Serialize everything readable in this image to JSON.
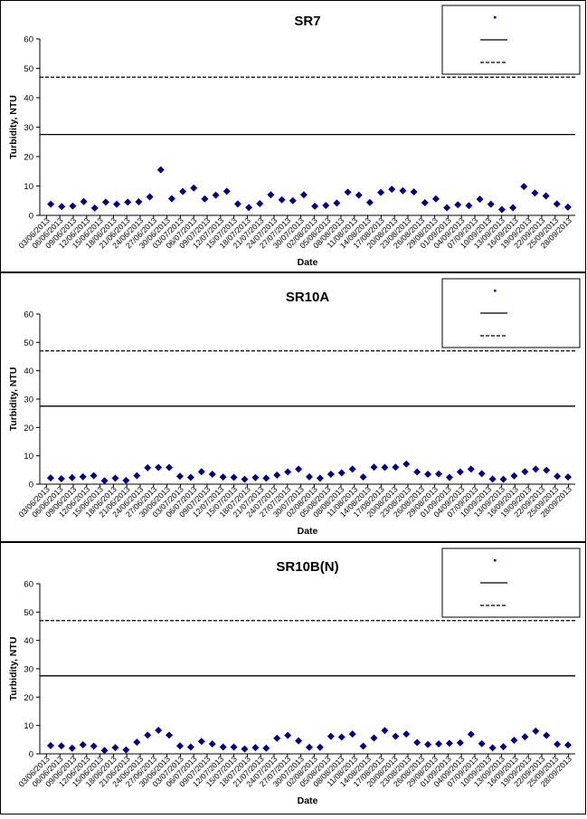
{
  "chart_data": [
    {
      "type": "scatter",
      "title": "SR7",
      "xlabel": "Date",
      "ylabel": "Turbidity, NTU",
      "ylim": [
        0,
        60
      ],
      "yticks": [
        0,
        10,
        20,
        30,
        40,
        50,
        60
      ],
      "xtick_labels": [
        "03/06/2013",
        "06/06/2013",
        "09/06/2013",
        "12/06/2013",
        "15/06/2013",
        "18/06/2013",
        "21/06/2013",
        "24/06/2013",
        "27/06/2013",
        "30/06/2013",
        "03/07/2013",
        "06/07/2013",
        "09/07/2013",
        "12/07/2013",
        "15/07/2013",
        "18/07/2013",
        "21/07/2013",
        "24/07/2013",
        "27/07/2013",
        "30/07/2013",
        "02/08/2013",
        "05/08/2013",
        "08/08/2013",
        "11/08/2013",
        "14/08/2013",
        "17/08/2013",
        "20/08/2013",
        "23/08/2013",
        "26/08/2013",
        "29/08/2013",
        "01/09/2013",
        "04/09/2013",
        "07/09/2013",
        "10/09/2013",
        "13/09/2013",
        "16/09/2013",
        "19/09/2013",
        "22/09/2013",
        "25/09/2013",
        "28/09/2013"
      ],
      "legend_position": "top-right",
      "legend_entries": [
        "",
        "",
        ""
      ],
      "reference_lines": [
        {
          "value": 27.5,
          "style": "solid"
        },
        {
          "value": 47,
          "style": "dashed"
        }
      ],
      "marker_color": "#00008B",
      "series": [
        {
          "values": [
            3.8,
            3.0,
            3.2,
            4.7,
            2.5,
            4.5,
            3.8,
            4.5,
            4.6,
            6.3,
            15.5,
            5.7,
            8.1,
            9.3,
            5.6,
            6.9,
            8.2,
            3.9,
            2.7,
            4.0,
            7.0,
            5.3,
            5.0,
            7.0,
            3.1,
            3.4,
            4.2,
            7.9,
            6.9,
            4.4,
            7.8,
            8.9,
            8.4,
            8.0,
            4.3,
            5.6,
            2.6,
            3.6,
            3.3,
            5.5,
            3.8,
            2.0,
            2.6,
            9.8,
            7.6,
            6.6,
            3.9,
            2.8
          ]
        }
      ]
    },
    {
      "type": "scatter",
      "title": "SR10A",
      "xlabel": "Date",
      "ylabel": "Turbidity, NTU",
      "ylim": [
        0,
        60
      ],
      "yticks": [
        0,
        10,
        20,
        30,
        40,
        50,
        60
      ],
      "xtick_labels": [
        "03/06/2013",
        "06/06/2013",
        "09/06/2013",
        "12/06/2013",
        "15/06/2013",
        "18/06/2013",
        "21/06/2013",
        "24/06/2013",
        "27/06/2013",
        "30/06/2013",
        "03/07/2013",
        "06/07/2013",
        "09/07/2013",
        "12/07/2013",
        "15/07/2013",
        "18/07/2013",
        "21/07/2013",
        "24/07/2013",
        "27/07/2013",
        "30/07/2013",
        "02/08/2013",
        "05/08/2013",
        "08/08/2013",
        "11/08/2013",
        "14/08/2013",
        "17/08/2013",
        "20/08/2013",
        "23/08/2013",
        "26/08/2013",
        "29/08/2013",
        "01/09/2013",
        "04/09/2013",
        "07/09/2013",
        "10/09/2013",
        "13/09/2013",
        "16/09/2013",
        "19/09/2013",
        "22/09/2013",
        "25/09/2013",
        "28/09/2013"
      ],
      "legend_position": "top-right",
      "legend_entries": [
        "",
        "",
        ""
      ],
      "reference_lines": [
        {
          "value": 27.5,
          "style": "solid"
        },
        {
          "value": 47,
          "style": "dashed"
        }
      ],
      "marker_color": "#00008B",
      "series": [
        {
          "values": [
            2.2,
            1.9,
            2.3,
            2.6,
            3.0,
            1.2,
            2.1,
            1.3,
            3.0,
            5.8,
            5.9,
            5.9,
            2.8,
            2.4,
            4.4,
            3.5,
            2.5,
            2.4,
            1.7,
            2.3,
            2.1,
            3.2,
            4.3,
            5.3,
            2.6,
            2.1,
            3.5,
            4.0,
            5.3,
            2.5,
            6.0,
            5.9,
            6.0,
            7.1,
            4.3,
            3.5,
            3.6,
            2.4,
            4.3,
            5.3,
            3.7,
            1.8,
            1.7,
            2.9,
            4.4,
            5.3,
            4.9,
            2.8,
            2.5
          ]
        }
      ]
    },
    {
      "type": "scatter",
      "title": "SR10B(N)",
      "xlabel": "Date",
      "ylabel": "Turbidity, NTU",
      "ylim": [
        0,
        60
      ],
      "yticks": [
        0,
        10,
        20,
        30,
        40,
        50,
        60
      ],
      "xtick_labels": [
        "03/06/2013",
        "06/06/2013",
        "09/06/2013",
        "12/06/2013",
        "15/06/2013",
        "18/06/2013",
        "21/06/2013",
        "24/06/2013",
        "27/06/2013",
        "30/06/2013",
        "03/07/2013",
        "06/07/2013",
        "09/07/2013",
        "12/07/2013",
        "15/07/2013",
        "18/07/2013",
        "21/07/2013",
        "24/07/2013",
        "27/07/2013",
        "30/07/2013",
        "02/08/2013",
        "05/08/2013",
        "08/08/2013",
        "11/08/2013",
        "14/08/2013",
        "17/08/2013",
        "20/08/2013",
        "23/08/2013",
        "26/08/2013",
        "29/08/2013",
        "01/09/2013",
        "04/09/2013",
        "07/09/2013",
        "10/09/2013",
        "13/09/2013",
        "16/09/2013",
        "19/09/2013",
        "22/09/2013",
        "25/09/2013",
        "28/09/2013"
      ],
      "legend_position": "top-right",
      "legend_entries": [
        "",
        "",
        ""
      ],
      "reference_lines": [
        {
          "value": 27.5,
          "style": "solid"
        },
        {
          "value": 47,
          "style": "dashed"
        }
      ],
      "marker_color": "#00008B",
      "series": [
        {
          "values": [
            2.9,
            2.8,
            2.0,
            3.2,
            2.7,
            1.2,
            2.2,
            1.4,
            4.1,
            6.6,
            8.3,
            6.6,
            2.8,
            2.4,
            4.4,
            3.5,
            2.4,
            2.4,
            1.7,
            2.2,
            2.0,
            5.5,
            6.5,
            4.6,
            2.3,
            2.3,
            6.2,
            5.9,
            7.0,
            2.7,
            5.6,
            8.2,
            6.2,
            7.0,
            4.0,
            3.3,
            3.5,
            3.7,
            3.9,
            6.9,
            3.6,
            2.1,
            2.5,
            4.8,
            6.0,
            8.0,
            6.5,
            3.4,
            3.1
          ]
        }
      ]
    }
  ]
}
